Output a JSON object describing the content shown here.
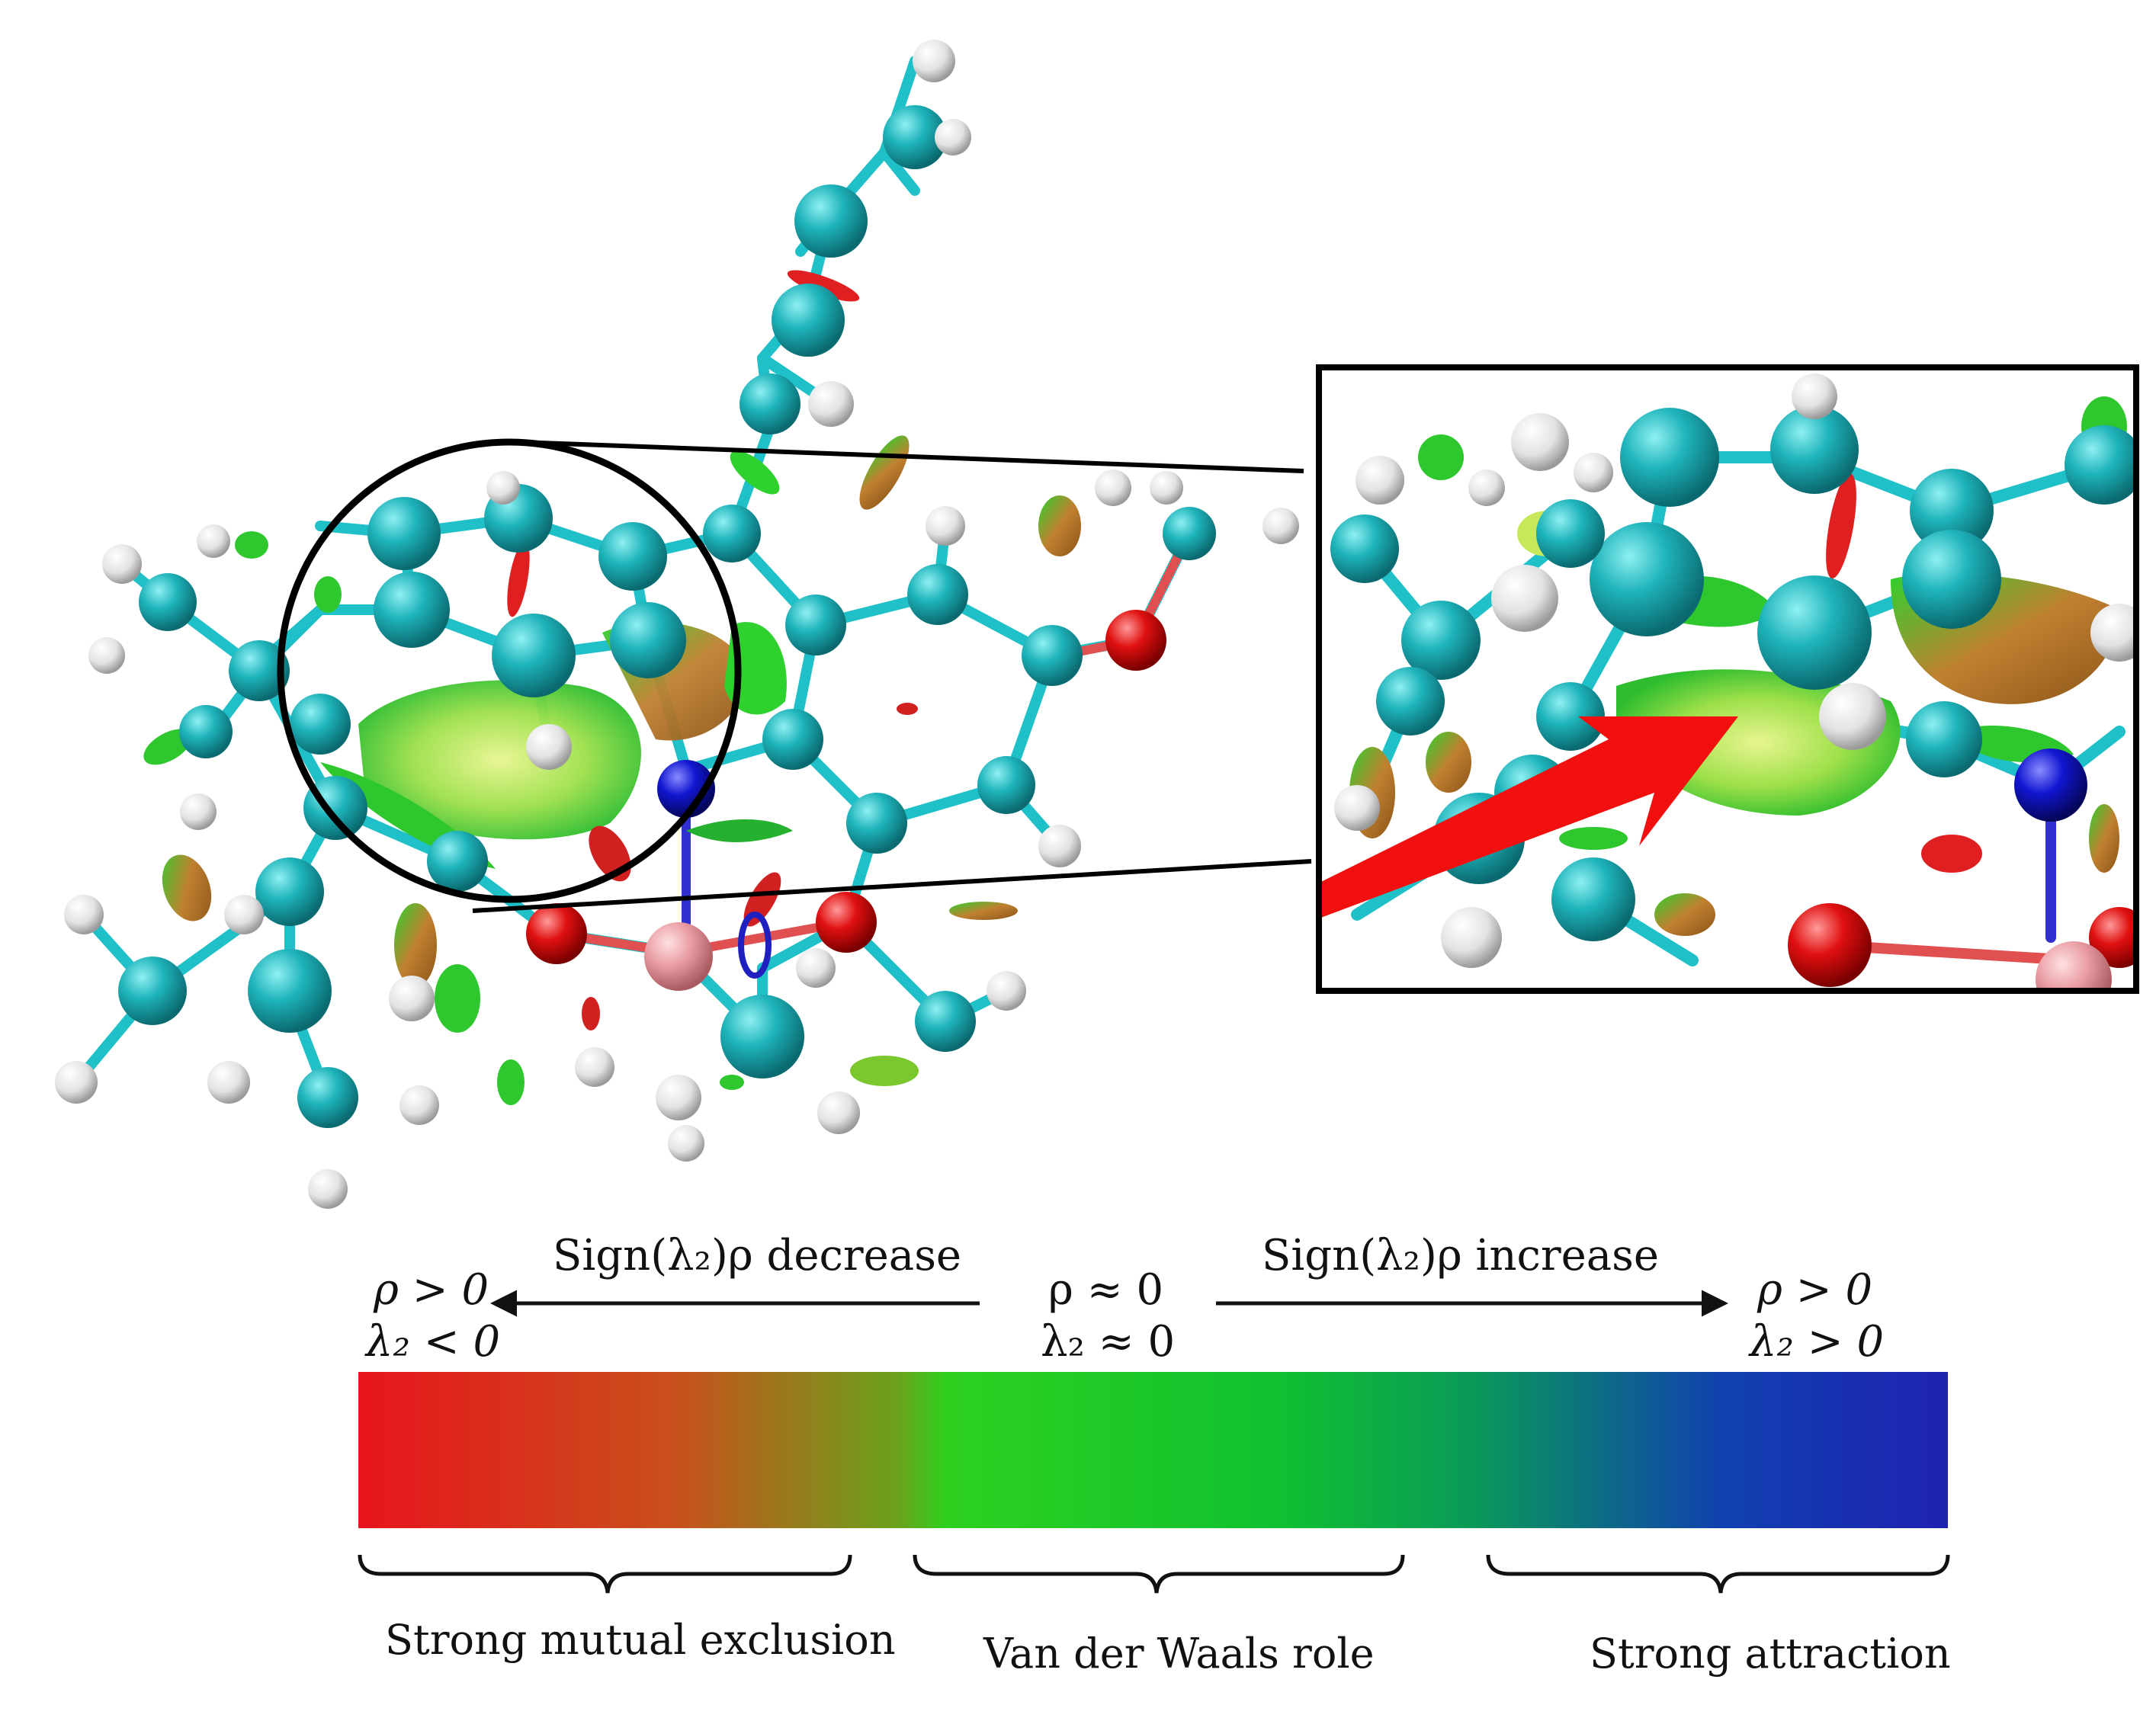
{
  "diagram": {
    "scale": {
      "arrow_left_label": "Sign(λ₂)ρ decrease",
      "arrow_right_label": "Sign(λ₂)ρ increase",
      "left_end_line1": "ρ > 0",
      "left_end_line2": "λ₂ < 0",
      "center_line1": "ρ ≈ 0",
      "center_line2": "λ₂ ≈ 0",
      "right_end_line1": "ρ > 0",
      "right_end_line2": "λ₂ > 0",
      "gradient_colors": [
        "#e8141c",
        "#c8501c",
        "#6aa21c",
        "#2ed11f",
        "#10c030",
        "#0a9a58",
        "#1040b0",
        "#1f22b0"
      ],
      "regions": [
        {
          "label": "Strong mutual exclusion"
        },
        {
          "label": "Van der Waals role"
        },
        {
          "label": "Strong attraction"
        }
      ]
    },
    "colors": {
      "carbon": "#1aa9b0",
      "hydrogen": "#e6e6e6",
      "oxygen": "#e01010",
      "nitrogen": "#1014c8",
      "boron": "#e89aa0",
      "bond": "#20c0c8",
      "arrow": "#f20f0f",
      "isosurface_green": "#46d23c",
      "isosurface_yellow": "#c8ea6a",
      "isosurface_brown": "#b8782a"
    }
  }
}
